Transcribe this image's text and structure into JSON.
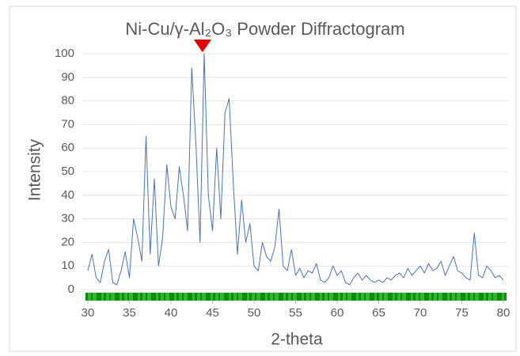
{
  "chart_data": {
    "type": "line",
    "title": "Ni-Cu/γ-Al₂O₃ Powder Diffractogram",
    "x_label": "2-theta",
    "y_label": "Intensity",
    "x": [
      30,
      30.5,
      31,
      31.5,
      32,
      32.5,
      33,
      33.5,
      34,
      34.5,
      35,
      35.5,
      36,
      36.5,
      37,
      37.5,
      38,
      38.5,
      39,
      39.5,
      40,
      40.5,
      41,
      41.5,
      42,
      42.5,
      43,
      43.5,
      44,
      44.5,
      45,
      45.5,
      46,
      46.5,
      47,
      47.5,
      48,
      48.5,
      49,
      49.5,
      50,
      50.5,
      51,
      51.5,
      52,
      52.5,
      53,
      53.5,
      54,
      54.5,
      55,
      55.5,
      56,
      56.5,
      57,
      57.5,
      58,
      58.5,
      59,
      59.5,
      60,
      60.5,
      61,
      61.5,
      62,
      62.5,
      63,
      63.5,
      64,
      64.5,
      65,
      65.5,
      66,
      66.5,
      67,
      67.5,
      68,
      68.5,
      69,
      69.5,
      70,
      70.5,
      71,
      71.5,
      72,
      72.5,
      73,
      73.5,
      74,
      74.5,
      75,
      75.5,
      76,
      76.5,
      77,
      77.5,
      78,
      78.5,
      79,
      79.5,
      80
    ],
    "series": [
      {
        "name": "Intensity",
        "color": "#4472c4",
        "values": [
          8,
          15,
          5,
          3,
          12,
          17,
          3,
          2,
          8,
          16,
          5,
          30,
          22,
          12,
          65,
          15,
          47,
          10,
          22,
          53,
          35,
          30,
          52,
          40,
          25,
          94,
          62,
          20,
          100,
          40,
          25,
          60,
          30,
          75,
          81,
          45,
          15,
          38,
          20,
          28,
          10,
          8,
          20,
          14,
          12,
          18,
          34,
          10,
          8,
          17,
          6,
          9,
          5,
          8,
          7,
          11,
          4,
          3,
          5,
          10,
          6,
          8,
          3,
          2,
          5,
          7,
          4,
          6,
          4,
          3,
          4,
          3,
          5,
          4,
          6,
          7,
          5,
          9,
          6,
          8,
          10,
          7,
          11,
          8,
          9,
          12,
          6,
          10,
          14,
          8,
          7,
          5,
          4,
          24,
          6,
          5,
          10,
          8,
          5,
          6,
          4
        ]
      }
    ],
    "marker": {
      "x": 43.8,
      "y": 100,
      "color": "#e00000"
    },
    "xlim": [
      30,
      80
    ],
    "ylim": [
      0,
      100
    ],
    "xticks": [
      30,
      35,
      40,
      45,
      50,
      55,
      60,
      65,
      70,
      75,
      80
    ],
    "yticks": [
      0,
      10,
      20,
      30,
      40,
      50,
      60,
      70,
      80,
      90,
      100
    ],
    "grid": true
  }
}
